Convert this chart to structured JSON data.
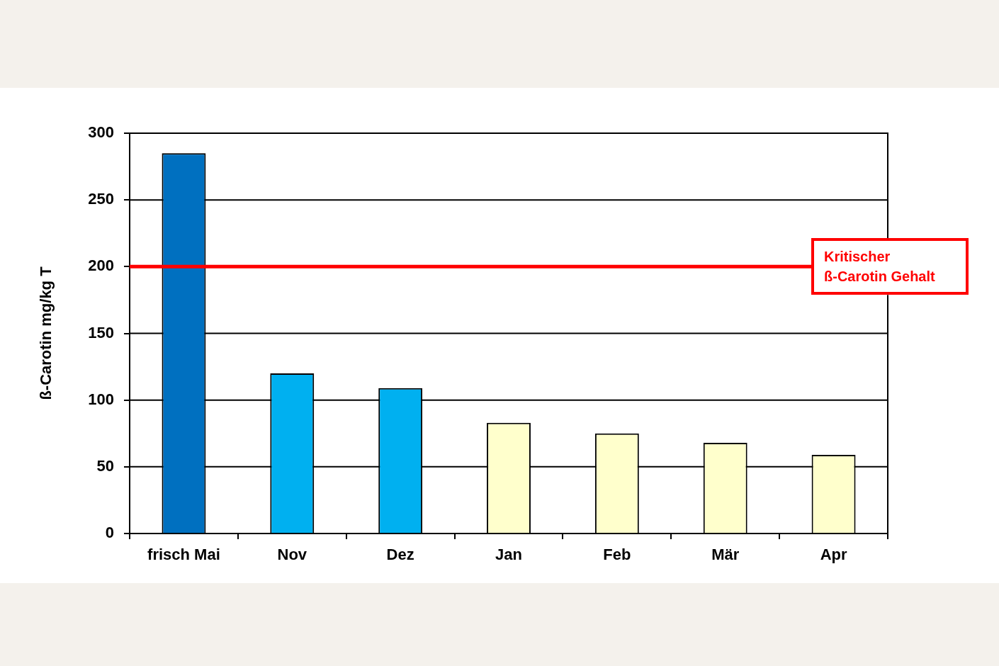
{
  "chart_data": {
    "type": "bar",
    "ylabel": "ß-Carotin mg/kg T",
    "categories": [
      "frisch Mai",
      "Nov",
      "Dez",
      "Jan",
      "Feb",
      "Mär",
      "Apr"
    ],
    "values": [
      285,
      120,
      109,
      83,
      75,
      68,
      59
    ],
    "colors": [
      "#0070c0",
      "#00b0f0",
      "#00b0f0",
      "#ffffcc",
      "#ffffcc",
      "#ffffcc",
      "#ffffcc"
    ],
    "ylim": [
      0,
      300
    ],
    "yticks": [
      0,
      50,
      100,
      150,
      200,
      250,
      300
    ],
    "grid": "y",
    "ref_lines": [
      {
        "axis": "y",
        "value": 200,
        "label": "Kritischer ß-Carotin Gehalt",
        "color": "#ff0000"
      }
    ]
  }
}
